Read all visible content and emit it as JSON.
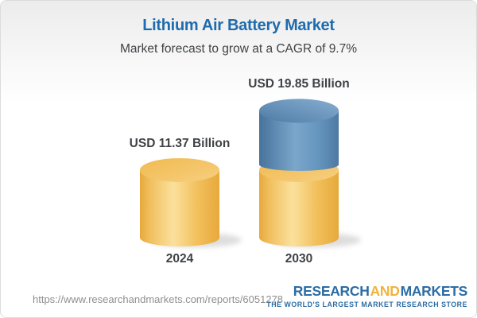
{
  "header": {
    "title": "Lithium Air Battery Market",
    "subtitle": "Market forecast to grow at a CAGR of 9.7%"
  },
  "chart_data": {
    "type": "bar",
    "subtype": "3d-cylinder",
    "title": "Lithium Air Battery Market",
    "subtitle": "Market forecast to grow at a CAGR of 9.7%",
    "unit": "USD Billion",
    "cagr_percent": 9.7,
    "categories": [
      "2024",
      "2030"
    ],
    "values": [
      11.37,
      19.85
    ],
    "value_labels": [
      "USD 11.37 Billion",
      "USD 19.85 Billion"
    ],
    "segments": [
      {
        "category": "2024",
        "stack": [
          {
            "value": 11.37,
            "color": "#F0BE5C"
          }
        ]
      },
      {
        "category": "2030",
        "stack": [
          {
            "value": 11.37,
            "color": "#F0BE5C"
          },
          {
            "value": 8.48,
            "color": "#5D89B4"
          }
        ]
      }
    ],
    "ylim": [
      0,
      22
    ],
    "grid": false,
    "legend": false,
    "colors": {
      "base": "#F0BE5C",
      "growth": "#5D89B4",
      "label_text": "#3F4245"
    }
  },
  "footer": {
    "url": "https://www.researchandmarkets.com/reports/6051278",
    "logo": {
      "part1": "RESEARCH",
      "part2": "AND",
      "part3": "MARKETS",
      "tagline": "THE WORLD'S LARGEST MARKET RESEARCH STORE",
      "blue": "#2B6CA4",
      "orange": "#F1B23B"
    }
  },
  "theme": {
    "title_blue": "#1F6BAD",
    "text_dark": "#3F4245",
    "url_gray": "#8F8F8F",
    "card_border": "#DCDCDC",
    "header_gradient_top": "#ECECEC"
  }
}
